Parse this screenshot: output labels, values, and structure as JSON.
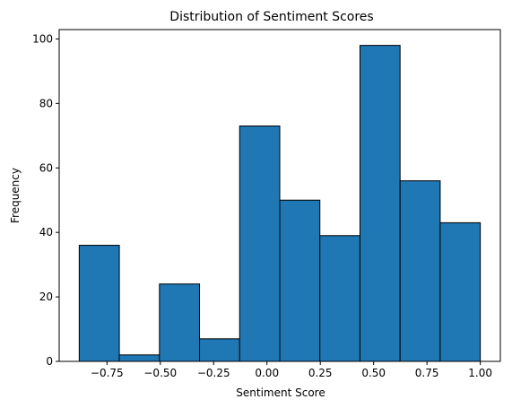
{
  "chart_data": {
    "type": "bar",
    "title": "Distribution of Sentiment Scores",
    "xlabel": "Sentiment Score",
    "ylabel": "Frequency",
    "bin_edges": [
      -0.88,
      -0.692,
      -0.504,
      -0.316,
      -0.128,
      0.06,
      0.248,
      0.436,
      0.624,
      0.812,
      1.0
    ],
    "values": [
      36,
      2,
      24,
      7,
      73,
      50,
      39,
      98,
      56,
      43
    ],
    "xlim": [
      -0.974,
      1.094
    ],
    "ylim": [
      0,
      102.9
    ],
    "xticks": [
      -0.75,
      -0.5,
      -0.25,
      0.0,
      0.25,
      0.5,
      0.75,
      1.0
    ],
    "xtick_labels": [
      "−0.75",
      "−0.50",
      "−0.25",
      "0.00",
      "0.25",
      "0.50",
      "0.75",
      "1.00"
    ],
    "yticks": [
      0,
      20,
      40,
      60,
      80,
      100
    ],
    "ytick_labels": [
      "0",
      "20",
      "40",
      "60",
      "80",
      "100"
    ],
    "bar_color": "#1f77b4",
    "bar_edge_color": "#000000",
    "grid": false,
    "legend": "none"
  }
}
